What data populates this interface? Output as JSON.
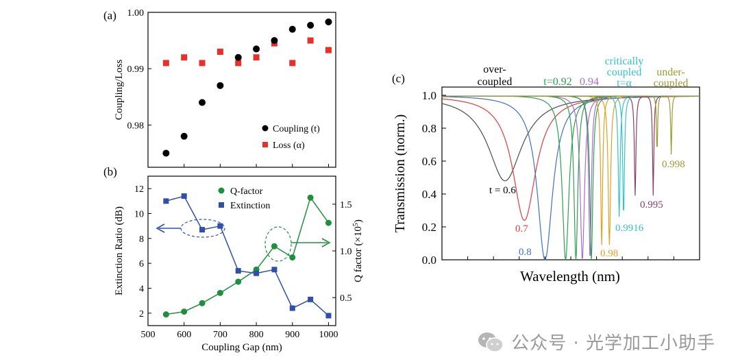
{
  "chart_data": [
    {
      "panel": "(a)",
      "type": "scatter",
      "ylabel": "Coupling/Loss",
      "xlim": [
        500,
        1020
      ],
      "ylim": [
        0.9725,
        1.0
      ],
      "yticks": [
        "0.98",
        "0.99",
        "1.00"
      ],
      "ytick_values": [
        0.98,
        0.99,
        1.0
      ],
      "series": [
        {
          "name": "Coupling (t)",
          "color": "#000000",
          "marker": "circle",
          "x": [
            550,
            600,
            650,
            700,
            750,
            800,
            850,
            900,
            950,
            1000
          ],
          "y": [
            0.975,
            0.978,
            0.984,
            0.987,
            0.992,
            0.9935,
            0.995,
            0.997,
            0.9977,
            0.9983
          ]
        },
        {
          "name": "Loss (α)",
          "color": "#e8302a",
          "marker": "square",
          "x": [
            550,
            600,
            650,
            700,
            750,
            800,
            850,
            900,
            950,
            1000
          ],
          "y": [
            0.991,
            0.992,
            0.991,
            0.993,
            0.991,
            0.992,
            0.9945,
            0.991,
            0.995,
            0.9933
          ]
        }
      ]
    },
    {
      "panel": "(b)",
      "type": "line",
      "xlabel": "Coupling Gap (nm)",
      "ylabel_left": "Extinction Ratio (dB)",
      "ylabel_right": "Q factor (×10",
      "ylabel_right_sup": "5",
      "ylabel_right_end": ")",
      "xticks": [
        "500",
        "600",
        "700",
        "800",
        "900",
        "1000"
      ],
      "xtick_values": [
        500,
        600,
        700,
        800,
        900,
        1000
      ],
      "xlim": [
        500,
        1020
      ],
      "ylim_left": [
        1,
        13
      ],
      "yticks_left": [
        "2",
        "4",
        "6",
        "8",
        "10",
        "12"
      ],
      "ytick_left_values": [
        2,
        4,
        6,
        8,
        10,
        12
      ],
      "ylim_right": [
        0.2,
        1.8
      ],
      "yticks_right": [
        "0.5",
        "1.0",
        "1.5"
      ],
      "ytick_right_values": [
        0.5,
        1.0,
        1.5
      ],
      "series": [
        {
          "name": "Q-factor",
          "axis": "right",
          "color": "#1e8f3e",
          "marker": "circle",
          "x": [
            550,
            600,
            650,
            700,
            750,
            800,
            850,
            900,
            950,
            1000
          ],
          "y": [
            0.32,
            0.35,
            0.44,
            0.55,
            0.67,
            0.8,
            1.05,
            0.93,
            1.57,
            1.3
          ]
        },
        {
          "name": "Extinction",
          "axis": "left",
          "color": "#2f4fa8",
          "marker": "square",
          "x": [
            550,
            600,
            650,
            700,
            750,
            800,
            850,
            900,
            950,
            1000
          ],
          "y": [
            11,
            11.4,
            8.7,
            9.0,
            5.4,
            5.2,
            5.5,
            2.4,
            3.1,
            1.8
          ]
        }
      ]
    },
    {
      "panel": "(c)",
      "type": "line",
      "xlabel": "Wavelength (nm)",
      "ylabel": "Transmission (norm.)",
      "ylim": [
        0,
        1.05
      ],
      "yticks": [
        "0.0",
        "0.2",
        "0.4",
        "0.6",
        "0.8",
        "1.0"
      ],
      "ytick_values": [
        0.0,
        0.2,
        0.4,
        0.6,
        0.8,
        1.0
      ],
      "xlim": [
        0,
        100
      ],
      "curves": [
        {
          "t": 0.6,
          "label": "t = 0.6",
          "color": "#4a4a4a",
          "center": 24.5,
          "width": 8.0,
          "min": 0.48
        },
        {
          "t": 0.7,
          "label": "0.7",
          "color": "#e23a3a",
          "center": 32.0,
          "width": 5.5,
          "min": 0.24
        },
        {
          "t": 0.8,
          "label": "0.8",
          "color": "#3d6fc9",
          "center": 40.0,
          "width": 3.6,
          "min": 0.0
        },
        {
          "t": 0.92,
          "label": "",
          "color": "#2e9e4e",
          "center": 48.0,
          "width": 1.6,
          "min": 0.0
        },
        {
          "t": 0.94,
          "label": "",
          "color": "#a86bd0",
          "center": 54.5,
          "width": 1.0,
          "min": 0.0
        },
        {
          "t": 0.98,
          "label": "0.98",
          "color": "#e0a020",
          "center": 65.0,
          "width": 0.55,
          "min": 0.09
        },
        {
          "t": 0.9916,
          "label": "0.9916",
          "color": "#33c3c9",
          "center": 68.8,
          "width": 0.45,
          "min": 0.26
        },
        {
          "t": 0.995,
          "label": "0.995",
          "color": "#8a3d60",
          "center": 75.0,
          "width": 0.35,
          "min": 0.39
        },
        {
          "t": 0.998,
          "label": "0.998",
          "color": "#9a9a30",
          "center": 89.0,
          "width": 0.25,
          "min": 0.64
        }
      ],
      "extra_dips": [
        {
          "color": "#2e9e4e",
          "center": 52.0,
          "width": 0.9,
          "min": 0.0
        },
        {
          "color": "#a86bd0",
          "center": 57.5,
          "width": 0.6,
          "min": 0.0
        },
        {
          "color": "#2e9e4e",
          "center": 58.0,
          "width": 0.7,
          "min": 0.0
        },
        {
          "color": "#e0a020",
          "center": 62.0,
          "width": 0.45,
          "min": 0.09
        },
        {
          "color": "#33c3c9",
          "center": 70.5,
          "width": 0.4,
          "min": 0.26
        },
        {
          "color": "#8a3d60",
          "center": 82.0,
          "width": 0.3,
          "min": 0.39
        },
        {
          "color": "#9a9a30",
          "center": 83.5,
          "width": 0.25,
          "min": 0.64
        }
      ],
      "header_labels": [
        {
          "text": "over-",
          "color": "#000000"
        },
        {
          "text": "coupled",
          "color": "#000000"
        },
        {
          "text": "t=0.92",
          "color": "#2e9e4e"
        },
        {
          "text": "0.94",
          "color": "#a86bd0"
        },
        {
          "text": "critically",
          "color": "#33c3c9"
        },
        {
          "text": "coupled",
          "color": "#33c3c9"
        },
        {
          "text": "t=α",
          "color": "#33c3c9"
        },
        {
          "text": "under-",
          "color": "#9a9a30"
        },
        {
          "text": "coupled",
          "color": "#9a9a30"
        }
      ]
    }
  ],
  "watermark": {
    "text": "公众号 · 光学加工小助手"
  }
}
